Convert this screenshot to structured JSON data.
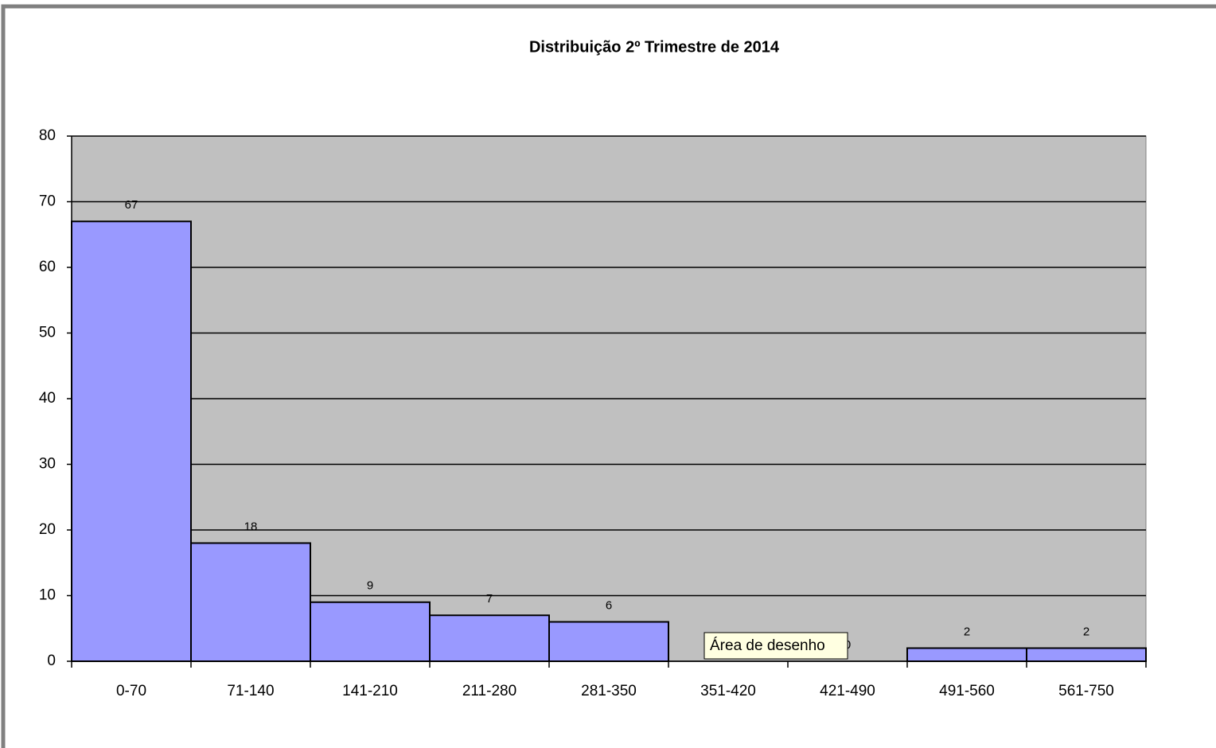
{
  "chart_data": {
    "type": "bar",
    "title": "Distribuição 2º Trimestre de 2014",
    "categories": [
      "0-70",
      "71-140",
      "141-210",
      "211-280",
      "281-350",
      "351-420",
      "421-490",
      "491-560",
      "561-750"
    ],
    "values": [
      67,
      18,
      9,
      7,
      6,
      0,
      0,
      2,
      2
    ],
    "color": "#9999ff",
    "ylim": [
      0,
      80
    ],
    "yticks": [
      0,
      10,
      20,
      30,
      40,
      50,
      60,
      70,
      80
    ],
    "grid": true,
    "tooltip": "Área de desenho"
  }
}
